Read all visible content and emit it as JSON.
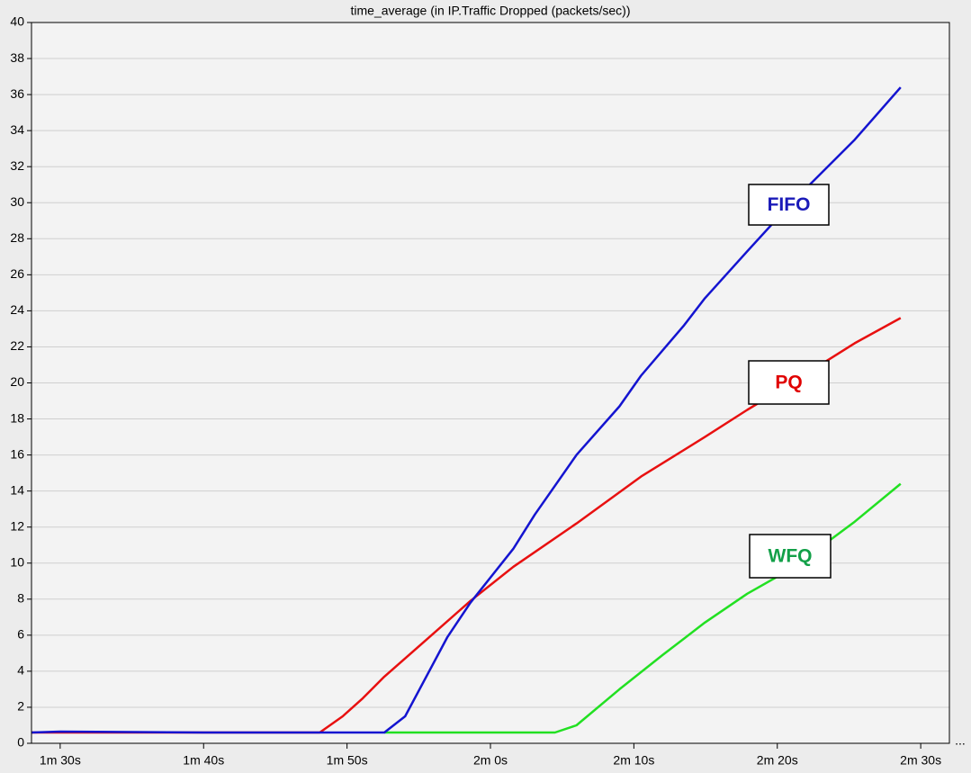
{
  "chart_data": {
    "type": "line",
    "title": "time_average (in IP.Traffic Dropped (packets/sec))",
    "xlim": [
      88,
      152
    ],
    "xticks": [
      {
        "value": 90,
        "label": "1m 30s"
      },
      {
        "value": 100,
        "label": "1m 40s"
      },
      {
        "value": 110,
        "label": "1m 50s"
      },
      {
        "value": 120,
        "label": "2m 0s"
      },
      {
        "value": 130,
        "label": "2m 10s"
      },
      {
        "value": 140,
        "label": "2m 20s"
      },
      {
        "value": 150,
        "label": "2m 30s"
      }
    ],
    "x_more": "...",
    "ylim": [
      0,
      40
    ],
    "yticks": [
      0,
      2,
      4,
      6,
      8,
      10,
      12,
      14,
      16,
      18,
      20,
      22,
      24,
      26,
      28,
      30,
      32,
      34,
      36,
      38,
      40
    ],
    "grid": true,
    "series": [
      {
        "name": "PQ",
        "color": "#e81010",
        "x": [
          88,
          108.1,
          109.7,
          111.1,
          112.6,
          115.6,
          118.6,
          121.6,
          126.0,
          130.5,
          134.95,
          137.9,
          141.0,
          145.4,
          148.6
        ],
        "values": [
          0.6,
          0.6,
          1.5,
          2.5,
          3.7,
          5.8,
          7.9,
          9.8,
          12.2,
          14.8,
          17.0,
          18.5,
          20.0,
          22.2,
          23.6
        ]
      },
      {
        "name": "WFQ",
        "color": "#22e022",
        "x": [
          112.6,
          118.6,
          124.5,
          126.0,
          129.0,
          132.0,
          134.95,
          137.9,
          141.0,
          145.4,
          148.6
        ],
        "values": [
          0.6,
          0.6,
          0.6,
          1.0,
          3.0,
          4.9,
          6.7,
          8.3,
          9.7,
          12.3,
          14.4
        ]
      },
      {
        "name": "FIFO",
        "color": "#1414d0",
        "x": [
          88,
          90,
          100,
          108.1,
          112.6,
          114.05,
          117.0,
          118.6,
          121.6,
          123.1,
          126.0,
          129.0,
          130.5,
          133.5,
          134.95,
          137.9,
          141.0,
          145.4,
          148.6
        ],
        "values": [
          0.6,
          0.65,
          0.6,
          0.6,
          0.6,
          1.5,
          5.9,
          7.8,
          10.8,
          12.7,
          16.0,
          18.7,
          20.4,
          23.2,
          24.7,
          27.3,
          30.0,
          33.5,
          36.4
        ]
      }
    ],
    "annotations": [
      {
        "text": "FIFO",
        "color": "#1a1ab8"
      },
      {
        "text": "PQ",
        "color": "#e00000"
      },
      {
        "text": "WFQ",
        "color": "#12a048"
      }
    ]
  }
}
